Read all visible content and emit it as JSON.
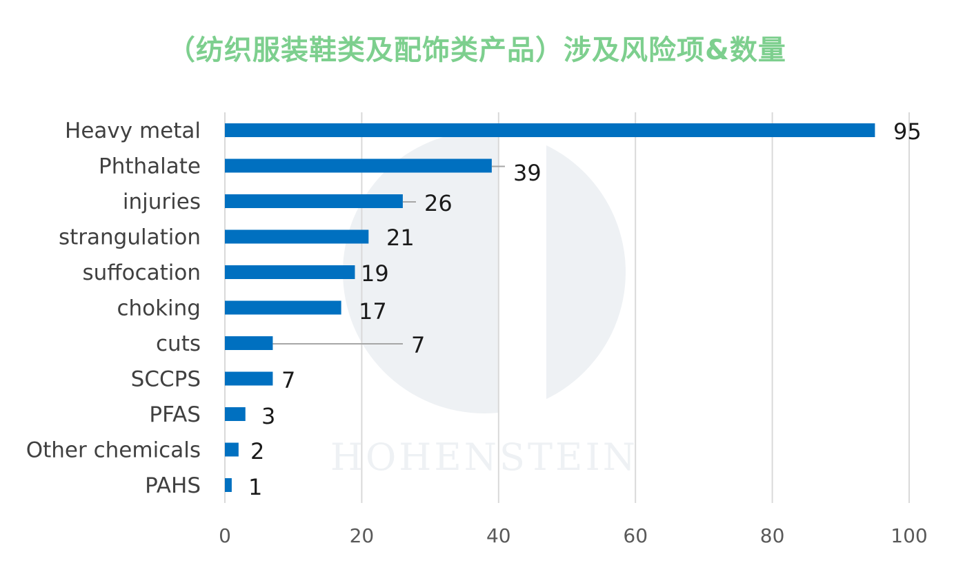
{
  "colors": {
    "title": "#7dcf8e",
    "bar": "#0070c0",
    "grid": "#d9d9d9",
    "leader": "#a6a6a6",
    "watermark": "#eef1f4"
  },
  "watermark": {
    "text": "HOHENSTEIN"
  },
  "chart_data": {
    "type": "bar",
    "orientation": "horizontal",
    "title": "（纺织服装鞋类及配饰类产品）涉及风险项&数量",
    "categories": [
      "Heavy metal",
      "Phthalate",
      "injuries",
      "strangulation",
      "suffocation",
      "choking",
      "cuts",
      "SCCPS",
      "PFAS",
      "Other chemicals",
      "PAHS"
    ],
    "series": [
      {
        "values": [
          95,
          39,
          26,
          21,
          19,
          17,
          7,
          7,
          3,
          2,
          1
        ]
      }
    ],
    "data_labels": [
      "95",
      "39",
      "26",
      "21",
      "19",
      "17",
      "7",
      "7",
      "3",
      "2",
      "1"
    ],
    "xlim": [
      0,
      100
    ],
    "xticks": [
      0,
      20,
      40,
      60,
      80,
      100
    ],
    "xtick_labels": [
      "0",
      "20",
      "40",
      "60",
      "80",
      "100"
    ],
    "xlabel": "",
    "ylabel": "",
    "grid": "vertical",
    "legend": "none"
  }
}
